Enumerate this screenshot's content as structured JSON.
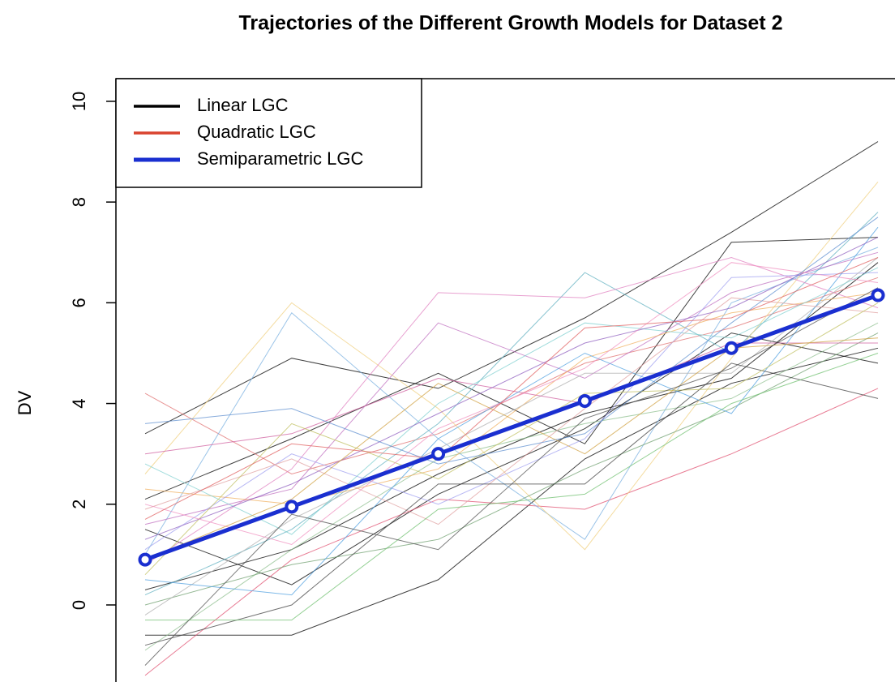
{
  "chart_data": {
    "type": "line",
    "title": "Trajectories of the Different Growth Models for Dataset 2",
    "ylabel": "DV",
    "categories": [
      null,
      null,
      null,
      null,
      null,
      null
    ],
    "ylim": [
      -1.53,
      10.45
    ],
    "yticks": [
      0,
      2,
      4,
      6,
      8,
      10
    ],
    "legend": "top-left",
    "series": [
      {
        "name": "Linear LGC",
        "color": "#000000",
        "values": [
          0.9,
          1.95,
          3.0,
          4.05,
          5.1,
          6.15
        ]
      },
      {
        "name": "Quadratic LGC",
        "color": "#d9432f",
        "values": [
          0.9,
          1.95,
          3.0,
          4.05,
          5.1,
          6.15
        ]
      },
      {
        "name": "Semiparametric LGC",
        "color": "#1a2fd0",
        "values": [
          0.9,
          1.95,
          3.0,
          4.05,
          5.1,
          6.15
        ]
      }
    ],
    "trajectories": [
      {
        "color": "#000000",
        "values": [
          3.4,
          4.9,
          4.3,
          5.7,
          7.4,
          9.2
        ]
      },
      {
        "color": "#000000",
        "values": [
          -0.6,
          -0.6,
          0.5,
          2.9,
          4.4,
          5.1
        ]
      },
      {
        "color": "#000000",
        "values": [
          2.1,
          3.3,
          4.6,
          3.2,
          7.2,
          7.3
        ]
      },
      {
        "color": "#000000",
        "values": [
          0.3,
          1.1,
          2.6,
          3.8,
          4.5,
          6.8
        ]
      },
      {
        "color": "#000000",
        "values": [
          1.5,
          0.4,
          2.2,
          3.5,
          5.4,
          4.8
        ]
      },
      {
        "color": "#e07070",
        "values": [
          4.2,
          2.6,
          3.4,
          4.8,
          5.5,
          6.5
        ]
      },
      {
        "color": "#e05070",
        "values": [
          -1.4,
          0.9,
          2.1,
          1.9,
          3.0,
          4.3
        ]
      },
      {
        "color": "#7ab0e0",
        "values": [
          1.0,
          5.8,
          3.3,
          1.3,
          6.0,
          7.1
        ]
      },
      {
        "color": "#60b0c0",
        "values": [
          0.2,
          1.5,
          3.6,
          6.6,
          5.0,
          7.8
        ]
      },
      {
        "color": "#f0d080",
        "values": [
          2.6,
          6.0,
          3.9,
          1.1,
          4.9,
          8.4
        ]
      },
      {
        "color": "#e080c0",
        "values": [
          0.8,
          2.7,
          6.2,
          6.1,
          6.9,
          5.9
        ]
      },
      {
        "color": "#90c090",
        "values": [
          -0.9,
          1.1,
          2.9,
          3.6,
          4.1,
          5.6
        ]
      },
      {
        "color": "#c070c0",
        "values": [
          1.6,
          2.3,
          5.6,
          4.5,
          6.2,
          7.0
        ]
      },
      {
        "color": "#70a070",
        "values": [
          0.0,
          0.8,
          1.3,
          2.7,
          3.9,
          5.4
        ]
      },
      {
        "color": "#f0b060",
        "values": [
          2.3,
          2.0,
          2.7,
          4.9,
          5.8,
          6.2
        ]
      },
      {
        "color": "#a0a0f0",
        "values": [
          1.1,
          3.0,
          2.0,
          3.3,
          6.5,
          6.6
        ]
      },
      {
        "color": "#b0b0b0",
        "values": [
          -0.2,
          1.7,
          3.1,
          4.6,
          4.6,
          6.9
        ]
      },
      {
        "color": "#d060a0",
        "values": [
          3.0,
          3.4,
          4.5,
          4.0,
          5.2,
          5.2
        ]
      },
      {
        "color": "#50a0e0",
        "values": [
          0.5,
          0.2,
          3.3,
          5.0,
          3.8,
          7.5
        ]
      },
      {
        "color": "#e0a0a0",
        "values": [
          1.9,
          2.9,
          1.6,
          3.9,
          6.1,
          5.8
        ]
      },
      {
        "color": "#404040",
        "values": [
          -0.8,
          0.0,
          2.4,
          2.4,
          4.8,
          4.1
        ]
      },
      {
        "color": "#80d0d0",
        "values": [
          2.8,
          1.4,
          4.0,
          5.6,
          5.3,
          6.7
        ]
      },
      {
        "color": "#c0c060",
        "values": [
          0.6,
          3.6,
          2.5,
          4.2,
          4.3,
          6.0
        ]
      },
      {
        "color": "#9060c0",
        "values": [
          1.3,
          2.4,
          3.8,
          5.2,
          5.9,
          7.3
        ]
      },
      {
        "color": "#70c070",
        "values": [
          -0.3,
          -0.3,
          1.9,
          2.2,
          4.0,
          5.0
        ]
      },
      {
        "color": "#f090c0",
        "values": [
          2.0,
          1.2,
          3.5,
          4.7,
          6.8,
          6.4
        ]
      },
      {
        "color": "#6090d0",
        "values": [
          3.6,
          3.9,
          2.8,
          3.4,
          5.6,
          7.7
        ]
      },
      {
        "color": "#d0a040",
        "values": [
          0.9,
          2.1,
          4.4,
          3.0,
          5.1,
          5.3
        ]
      },
      {
        "color": "#505050",
        "values": [
          -1.2,
          1.8,
          1.1,
          3.7,
          4.7,
          6.3
        ]
      },
      {
        "color": "#e06060",
        "values": [
          1.7,
          3.2,
          2.9,
          5.5,
          5.7,
          6.9
        ]
      }
    ]
  }
}
